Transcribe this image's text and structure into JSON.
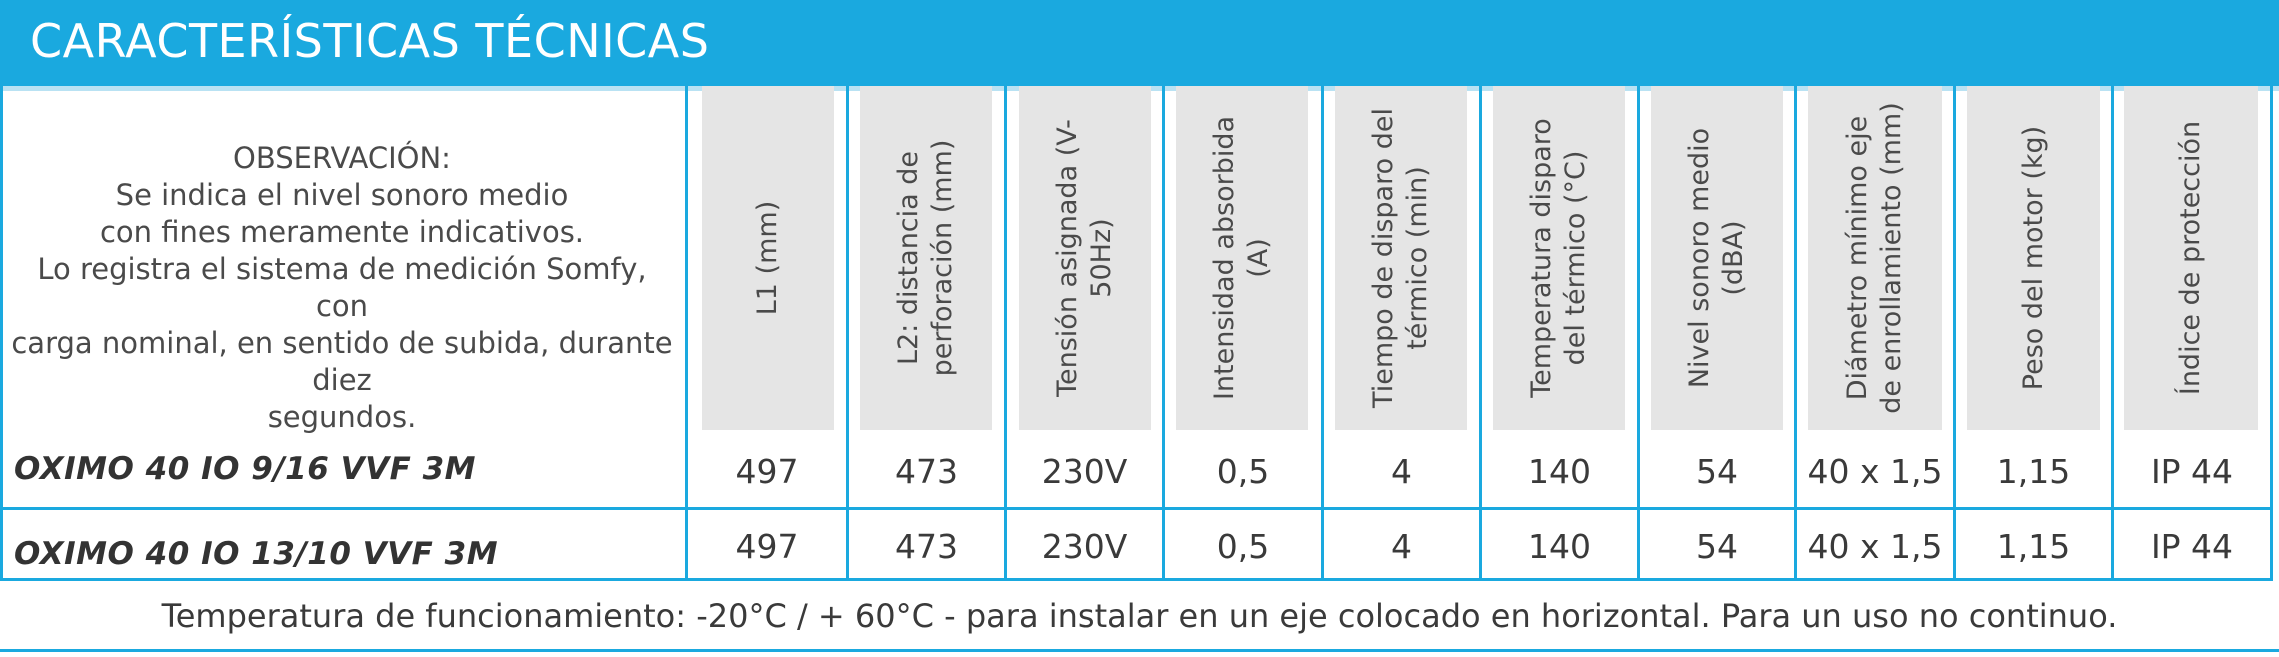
{
  "title": "CARACTERÍSTICAS TÉCNICAS",
  "observation": {
    "heading": "OBSERVACIÓN:",
    "lines": [
      "Se indica el nivel sonoro medio",
      "con fines meramente indicativos.",
      "Lo registra el sistema de medición Somfy, con",
      "carga nominal, en sentido de subida, durante diez",
      "segundos."
    ]
  },
  "columns": [
    "L1 (mm)",
    "L2: distancia de perforación (mm)",
    "Tensión asignada (V-50Hz)",
    "Intensidad absorbida (A)",
    "Tiempo de disparo del térmico (min)",
    "Temperatura disparo del térmico (°C)",
    "Nivel sonoro medio (dBA)",
    "Diámetro mínimo eje de enrollamiento (mm)",
    "Peso del motor (kg)",
    "Índice de protección"
  ],
  "rows": [
    {
      "label": "OXIMO 40 IO 9/16 VVF 3M",
      "values": [
        "497",
        "473",
        "230V",
        "0,5",
        "4",
        "140",
        "54",
        "40 x 1,5",
        "1,15",
        "IP 44"
      ]
    },
    {
      "label": "OXIMO 40 IO 13/10 VVF 3M",
      "values": [
        "497",
        "473",
        "230V",
        "0,5",
        "4",
        "140",
        "54",
        "40 x 1,5",
        "1,15",
        "IP 44"
      ]
    }
  ],
  "footnote": "Temperatura de funcionamiento: -20°C / + 60°C - para instalar en un eje colocado en horizontal. Para un uso no continuo.",
  "colors": {
    "accent": "#1aa9df",
    "header_bg": "#e5e5e5"
  }
}
